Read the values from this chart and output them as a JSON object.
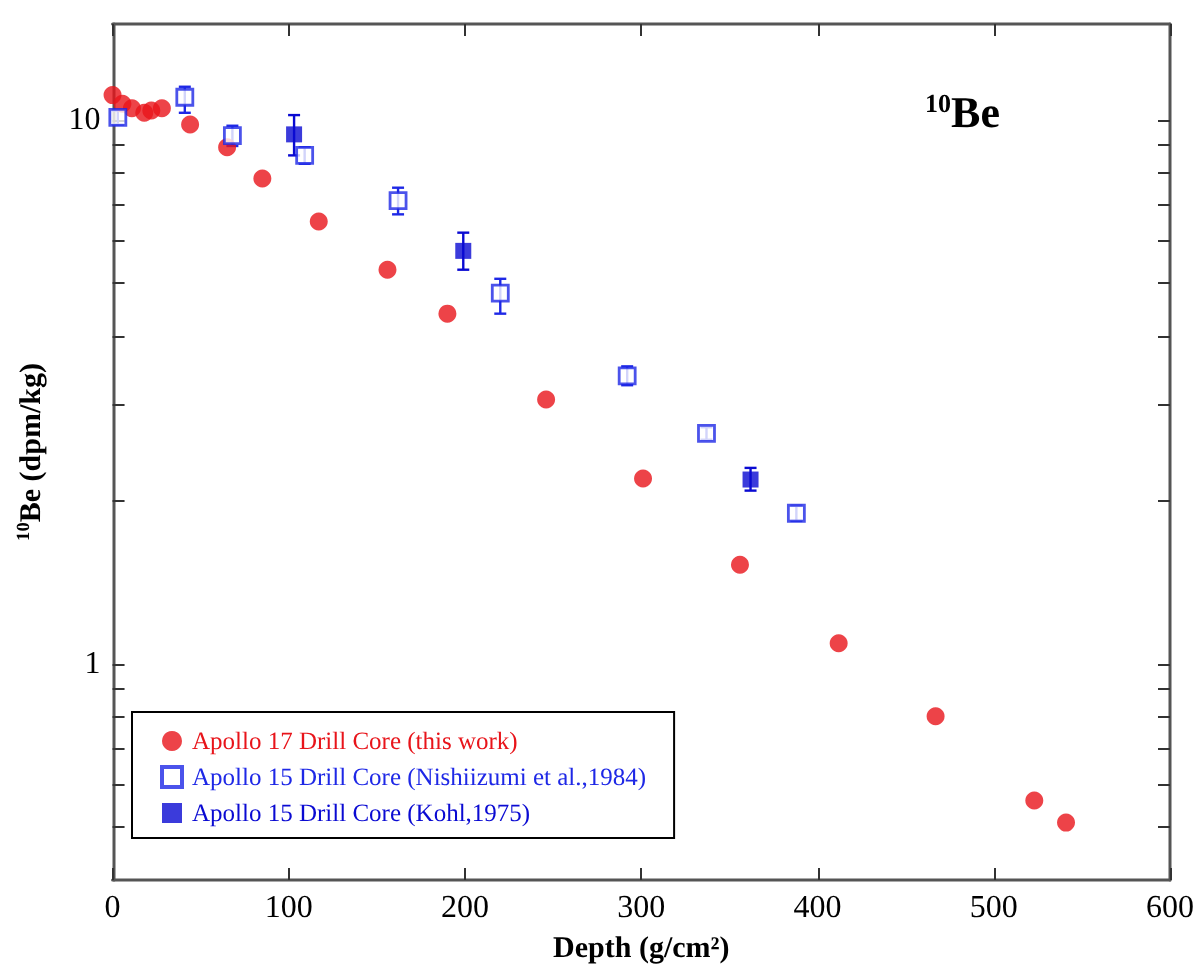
{
  "chart_data": {
    "type": "scatter",
    "title": "$^{10}$Be",
    "xlabel": "Depth (g/cm²)",
    "ylabel": "$^{10}$Be (dpm/kg)",
    "xlim": [
      0,
      600
    ],
    "xticks": [
      0,
      100,
      200,
      300,
      400,
      500,
      600
    ],
    "ylim": [
      0.4,
      15
    ],
    "yticks": [
      {
        "value": 0.5,
        "label": null
      },
      {
        "value": 0.6,
        "label": null
      },
      {
        "value": 0.7,
        "label": null
      },
      {
        "value": 0.8,
        "label": null
      },
      {
        "value": 0.9,
        "label": null
      },
      1,
      {
        "value": 2,
        "label": null
      },
      {
        "value": 3,
        "label": null
      },
      {
        "value": 4,
        "label": null
      },
      {
        "value": 5,
        "label": null
      },
      {
        "value": 6,
        "label": null
      },
      {
        "value": 7,
        "label": null
      },
      {
        "value": 8,
        "label": null
      },
      {
        "value": 9,
        "label": null
      },
      10
    ],
    "log": "y",
    "grid": false,
    "legend": "bottom left",
    "series": [
      {
        "name": "Apollo 17 Drill Core (this work)",
        "color": "#e8141a",
        "marker": "circle",
        "x": [
          0,
          5.6,
          11,
          18,
          22,
          28,
          44,
          65,
          85,
          117,
          156,
          190,
          246,
          301,
          356,
          412,
          467,
          523,
          541
        ],
        "values": [
          11.1,
          10.7,
          10.5,
          10.3,
          10.4,
          10.5,
          9.8,
          8.9,
          7.8,
          6.5,
          5.3,
          4.4,
          3.06,
          2.19,
          1.52,
          1.09,
          0.8,
          0.56,
          0.51
        ]
      },
      {
        "name": "Apollo 15 Drill Core (Nishiizumi et al.,1984)",
        "color": "#1e28e6",
        "marker": "square",
        "x": [
          3,
          41,
          68,
          109,
          162,
          220,
          292,
          337,
          388
        ],
        "values": [
          10.1,
          11.0,
          9.35,
          8.6,
          7.1,
          4.8,
          3.38,
          2.65,
          1.89
        ],
        "errors": [
          [
            9.8,
            10.4
          ],
          [
            10.3,
            11.5
          ],
          [
            8.95,
            9.75
          ],
          [
            8.3,
            8.9
          ],
          [
            6.7,
            7.5
          ],
          [
            4.4,
            5.1
          ],
          [
            3.25,
            3.52
          ],
          [
            2.58,
            2.72
          ],
          [
            1.83,
            1.95
          ]
        ]
      },
      {
        "name": "Apollo 15 Drill Core (Kohl,1975)",
        "color": "#0a0ad2",
        "marker": "square",
        "x": [
          103,
          199,
          362
        ],
        "values": [
          9.4,
          5.74,
          2.18
        ],
        "errors": [
          [
            8.6,
            10.2
          ],
          [
            5.3,
            6.2
          ],
          [
            2.08,
            2.29
          ]
        ]
      }
    ]
  }
}
